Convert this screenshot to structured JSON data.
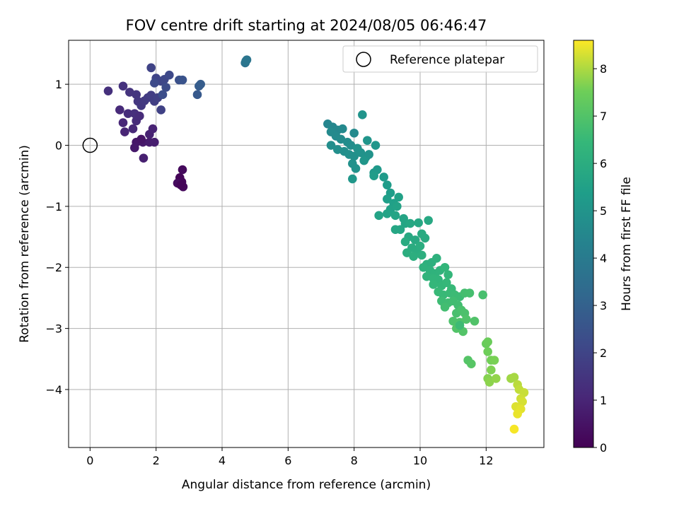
{
  "chart_data": {
    "type": "scatter",
    "title": "FOV centre drift starting at 2024/08/05 06:46:47",
    "xlabel": "Angular distance from reference (arcmin)",
    "ylabel": "Rotation from reference (arcmin)",
    "xlim": [
      -0.65,
      13.75
    ],
    "ylim": [
      -4.95,
      1.72
    ],
    "xticks": [
      0,
      2,
      4,
      6,
      8,
      10,
      12
    ],
    "yticks": [
      -4,
      -3,
      -2,
      -1,
      0,
      1
    ],
    "xtick_labels": [
      "0",
      "2",
      "4",
      "6",
      "8",
      "10",
      "12"
    ],
    "ytick_labels": [
      "−4",
      "−3",
      "−2",
      "−1",
      "0",
      "1"
    ],
    "grid": true,
    "colormap": "viridis",
    "colorbar": {
      "label": "Hours from first FF file",
      "range": [
        0,
        8.6
      ],
      "ticks": [
        0,
        1,
        2,
        3,
        4,
        5,
        6,
        7,
        8
      ],
      "tick_labels": [
        "0",
        "1",
        "2",
        "3",
        "4",
        "5",
        "6",
        "7",
        "8"
      ]
    },
    "legend": {
      "label": "Reference platepar",
      "placement": "top-right"
    },
    "reference_point": {
      "x": 0,
      "y": 0
    },
    "points": [
      {
        "x": 2.72,
        "y": -0.53,
        "c": 0.1
      },
      {
        "x": 2.78,
        "y": -0.6,
        "c": 0.15
      },
      {
        "x": 2.82,
        "y": -0.68,
        "c": 0.2
      },
      {
        "x": 2.8,
        "y": -0.4,
        "c": 0.25
      },
      {
        "x": 2.65,
        "y": -0.62,
        "c": 0.3
      },
      {
        "x": 2.75,
        "y": -0.65,
        "c": 0.12
      },
      {
        "x": 1.4,
        "y": 0.05,
        "c": 0.6
      },
      {
        "x": 1.35,
        "y": -0.04,
        "c": 0.65
      },
      {
        "x": 1.6,
        "y": 0.05,
        "c": 0.7
      },
      {
        "x": 1.8,
        "y": 0.05,
        "c": 0.75
      },
      {
        "x": 1.95,
        "y": 0.05,
        "c": 0.8
      },
      {
        "x": 1.62,
        "y": -0.21,
        "c": 0.85
      },
      {
        "x": 1.8,
        "y": 0.18,
        "c": 0.9
      },
      {
        "x": 1.9,
        "y": 0.27,
        "c": 0.95
      },
      {
        "x": 1.55,
        "y": 0.1,
        "c": 0.55
      },
      {
        "x": 1.05,
        "y": 0.22,
        "c": 1.0
      },
      {
        "x": 1.0,
        "y": 0.37,
        "c": 1.05
      },
      {
        "x": 1.3,
        "y": 0.27,
        "c": 1.1
      },
      {
        "x": 0.9,
        "y": 0.58,
        "c": 1.15
      },
      {
        "x": 1.4,
        "y": 0.4,
        "c": 1.2
      },
      {
        "x": 1.15,
        "y": 0.52,
        "c": 1.25
      },
      {
        "x": 1.35,
        "y": 0.52,
        "c": 1.3
      },
      {
        "x": 0.55,
        "y": 0.89,
        "c": 1.35
      },
      {
        "x": 1.0,
        "y": 0.97,
        "c": 1.4
      },
      {
        "x": 1.2,
        "y": 0.87,
        "c": 1.45
      },
      {
        "x": 1.4,
        "y": 0.83,
        "c": 1.5
      },
      {
        "x": 1.45,
        "y": 0.72,
        "c": 1.55
      },
      {
        "x": 1.55,
        "y": 0.65,
        "c": 1.6
      },
      {
        "x": 1.65,
        "y": 0.73,
        "c": 1.65
      },
      {
        "x": 1.75,
        "y": 0.78,
        "c": 1.7
      },
      {
        "x": 1.85,
        "y": 0.82,
        "c": 1.75
      },
      {
        "x": 1.95,
        "y": 0.72,
        "c": 1.8
      },
      {
        "x": 2.05,
        "y": 0.78,
        "c": 1.85
      },
      {
        "x": 2.15,
        "y": 0.58,
        "c": 1.9
      },
      {
        "x": 1.85,
        "y": 1.27,
        "c": 1.95
      },
      {
        "x": 2.0,
        "y": 1.1,
        "c": 2.0
      },
      {
        "x": 2.15,
        "y": 1.05,
        "c": 2.05
      },
      {
        "x": 2.25,
        "y": 1.08,
        "c": 2.1
      },
      {
        "x": 2.4,
        "y": 1.15,
        "c": 2.15
      },
      {
        "x": 1.95,
        "y": 1.02,
        "c": 2.2
      },
      {
        "x": 2.3,
        "y": 0.95,
        "c": 2.25
      },
      {
        "x": 2.2,
        "y": 0.83,
        "c": 2.3
      },
      {
        "x": 2.7,
        "y": 1.07,
        "c": 2.4
      },
      {
        "x": 2.8,
        "y": 1.07,
        "c": 2.5
      },
      {
        "x": 3.25,
        "y": 0.83,
        "c": 2.7
      },
      {
        "x": 3.3,
        "y": 0.97,
        "c": 2.8
      },
      {
        "x": 3.35,
        "y": 1.0,
        "c": 2.85
      },
      {
        "x": 1.5,
        "y": 0.48,
        "c": 1.22
      },
      {
        "x": 4.7,
        "y": 1.35,
        "c": 3.7
      },
      {
        "x": 4.75,
        "y": 1.4,
        "c": 3.75
      },
      {
        "x": 4.72,
        "y": 1.38,
        "c": 3.8
      },
      {
        "x": 7.2,
        "y": 0.35,
        "c": 4.4
      },
      {
        "x": 7.35,
        "y": 0.3,
        "c": 4.45
      },
      {
        "x": 7.5,
        "y": 0.25,
        "c": 4.5
      },
      {
        "x": 7.65,
        "y": 0.27,
        "c": 4.55
      },
      {
        "x": 7.3,
        "y": 0.22,
        "c": 4.6
      },
      {
        "x": 7.45,
        "y": 0.15,
        "c": 4.62
      },
      {
        "x": 7.6,
        "y": 0.1,
        "c": 4.65
      },
      {
        "x": 7.8,
        "y": 0.05,
        "c": 4.7
      },
      {
        "x": 7.9,
        "y": 0.0,
        "c": 4.72
      },
      {
        "x": 7.3,
        "y": 0.0,
        "c": 4.75
      },
      {
        "x": 7.5,
        "y": -0.07,
        "c": 4.78
      },
      {
        "x": 7.7,
        "y": -0.1,
        "c": 4.8
      },
      {
        "x": 7.85,
        "y": -0.15,
        "c": 4.82
      },
      {
        "x": 8.0,
        "y": -0.18,
        "c": 4.85
      },
      {
        "x": 7.95,
        "y": -0.3,
        "c": 4.88
      },
      {
        "x": 8.05,
        "y": -0.38,
        "c": 4.9
      },
      {
        "x": 8.2,
        "y": -0.12,
        "c": 4.92
      },
      {
        "x": 8.35,
        "y": -0.2,
        "c": 4.95
      },
      {
        "x": 8.45,
        "y": -0.15,
        "c": 4.97
      },
      {
        "x": 8.25,
        "y": 0.5,
        "c": 5.0
      },
      {
        "x": 8.4,
        "y": 0.08,
        "c": 5.02
      },
      {
        "x": 8.0,
        "y": 0.2,
        "c": 4.6
      },
      {
        "x": 8.65,
        "y": 0.0,
        "c": 5.05
      },
      {
        "x": 8.1,
        "y": -0.05,
        "c": 4.9
      },
      {
        "x": 8.3,
        "y": -0.25,
        "c": 5.08
      },
      {
        "x": 7.95,
        "y": -0.55,
        "c": 5.1
      },
      {
        "x": 8.6,
        "y": -0.45,
        "c": 5.15
      },
      {
        "x": 8.7,
        "y": -0.4,
        "c": 5.2
      },
      {
        "x": 8.9,
        "y": -0.52,
        "c": 5.25
      },
      {
        "x": 8.6,
        "y": -0.5,
        "c": 5.28
      },
      {
        "x": 9.0,
        "y": -0.65,
        "c": 5.3
      },
      {
        "x": 9.1,
        "y": -0.78,
        "c": 5.35
      },
      {
        "x": 9.0,
        "y": -0.88,
        "c": 5.4
      },
      {
        "x": 9.2,
        "y": -0.95,
        "c": 5.45
      },
      {
        "x": 9.35,
        "y": -0.85,
        "c": 5.5
      },
      {
        "x": 9.1,
        "y": -1.05,
        "c": 5.52
      },
      {
        "x": 9.3,
        "y": -1.0,
        "c": 5.55
      },
      {
        "x": 9.0,
        "y": -1.12,
        "c": 5.58
      },
      {
        "x": 8.75,
        "y": -1.15,
        "c": 5.6
      },
      {
        "x": 9.25,
        "y": -1.15,
        "c": 5.62
      },
      {
        "x": 9.5,
        "y": -1.2,
        "c": 5.65
      },
      {
        "x": 9.55,
        "y": -1.28,
        "c": 5.68
      },
      {
        "x": 9.25,
        "y": -1.38,
        "c": 5.7
      },
      {
        "x": 9.4,
        "y": -1.38,
        "c": 5.72
      },
      {
        "x": 9.7,
        "y": -1.28,
        "c": 5.75
      },
      {
        "x": 9.95,
        "y": -1.27,
        "c": 5.78
      },
      {
        "x": 10.25,
        "y": -1.23,
        "c": 5.8
      },
      {
        "x": 9.65,
        "y": -1.5,
        "c": 5.82
      },
      {
        "x": 9.85,
        "y": -1.55,
        "c": 5.85
      },
      {
        "x": 10.05,
        "y": -1.45,
        "c": 5.88
      },
      {
        "x": 10.15,
        "y": -1.52,
        "c": 5.9
      },
      {
        "x": 9.55,
        "y": -1.58,
        "c": 5.92
      },
      {
        "x": 9.75,
        "y": -1.68,
        "c": 5.95
      },
      {
        "x": 9.9,
        "y": -1.72,
        "c": 5.98
      },
      {
        "x": 10.0,
        "y": -1.65,
        "c": 6.0
      },
      {
        "x": 9.6,
        "y": -1.76,
        "c": 6.02
      },
      {
        "x": 9.8,
        "y": -1.82,
        "c": 6.05
      },
      {
        "x": 10.05,
        "y": -1.8,
        "c": 6.08
      },
      {
        "x": 10.2,
        "y": -1.95,
        "c": 6.1
      },
      {
        "x": 10.35,
        "y": -1.92,
        "c": 6.12
      },
      {
        "x": 10.5,
        "y": -1.85,
        "c": 6.15
      },
      {
        "x": 10.1,
        "y": -2.0,
        "c": 6.18
      },
      {
        "x": 10.3,
        "y": -2.05,
        "c": 6.2
      },
      {
        "x": 10.45,
        "y": -2.1,
        "c": 6.22
      },
      {
        "x": 10.6,
        "y": -2.05,
        "c": 6.25
      },
      {
        "x": 10.2,
        "y": -2.15,
        "c": 6.28
      },
      {
        "x": 10.4,
        "y": -2.18,
        "c": 6.3
      },
      {
        "x": 10.55,
        "y": -2.2,
        "c": 6.32
      },
      {
        "x": 10.75,
        "y": -2.0,
        "c": 6.35
      },
      {
        "x": 10.85,
        "y": -2.12,
        "c": 6.38
      },
      {
        "x": 10.4,
        "y": -2.28,
        "c": 6.4
      },
      {
        "x": 10.65,
        "y": -2.3,
        "c": 6.42
      },
      {
        "x": 10.8,
        "y": -2.25,
        "c": 6.45
      },
      {
        "x": 10.95,
        "y": -2.35,
        "c": 6.48
      },
      {
        "x": 10.55,
        "y": -2.4,
        "c": 6.5
      },
      {
        "x": 10.7,
        "y": -2.45,
        "c": 6.52
      },
      {
        "x": 10.9,
        "y": -2.42,
        "c": 6.55
      },
      {
        "x": 11.05,
        "y": -2.45,
        "c": 6.58
      },
      {
        "x": 11.2,
        "y": -2.48,
        "c": 6.6
      },
      {
        "x": 10.65,
        "y": -2.55,
        "c": 6.62
      },
      {
        "x": 10.85,
        "y": -2.58,
        "c": 6.65
      },
      {
        "x": 11.0,
        "y": -2.55,
        "c": 6.68
      },
      {
        "x": 11.15,
        "y": -2.62,
        "c": 6.7
      },
      {
        "x": 10.75,
        "y": -2.65,
        "c": 6.72
      },
      {
        "x": 11.35,
        "y": -2.42,
        "c": 6.75
      },
      {
        "x": 11.5,
        "y": -2.42,
        "c": 6.78
      },
      {
        "x": 11.9,
        "y": -2.45,
        "c": 6.8
      },
      {
        "x": 11.1,
        "y": -2.75,
        "c": 6.82
      },
      {
        "x": 11.25,
        "y": -2.7,
        "c": 6.85
      },
      {
        "x": 11.35,
        "y": -2.75,
        "c": 6.88
      },
      {
        "x": 11.0,
        "y": -2.88,
        "c": 6.9
      },
      {
        "x": 11.2,
        "y": -2.9,
        "c": 6.92
      },
      {
        "x": 11.4,
        "y": -2.85,
        "c": 6.95
      },
      {
        "x": 11.65,
        "y": -2.88,
        "c": 6.98
      },
      {
        "x": 11.1,
        "y": -3.0,
        "c": 7.0
      },
      {
        "x": 11.3,
        "y": -3.05,
        "c": 7.02
      },
      {
        "x": 11.2,
        "y": -2.95,
        "c": 6.6
      },
      {
        "x": 11.45,
        "y": -3.52,
        "c": 7.05
      },
      {
        "x": 11.55,
        "y": -3.58,
        "c": 7.1
      },
      {
        "x": 12.0,
        "y": -3.25,
        "c": 7.4
      },
      {
        "x": 12.05,
        "y": -3.22,
        "c": 7.45
      },
      {
        "x": 12.05,
        "y": -3.38,
        "c": 7.5
      },
      {
        "x": 12.15,
        "y": -3.52,
        "c": 7.55
      },
      {
        "x": 12.25,
        "y": -3.52,
        "c": 7.6
      },
      {
        "x": 12.15,
        "y": -3.68,
        "c": 7.65
      },
      {
        "x": 12.05,
        "y": -3.82,
        "c": 7.7
      },
      {
        "x": 12.1,
        "y": -3.88,
        "c": 7.75
      },
      {
        "x": 12.3,
        "y": -3.82,
        "c": 7.8
      },
      {
        "x": 12.75,
        "y": -3.82,
        "c": 7.9
      },
      {
        "x": 12.85,
        "y": -3.8,
        "c": 7.95
      },
      {
        "x": 12.95,
        "y": -3.92,
        "c": 8.1
      },
      {
        "x": 13.0,
        "y": -4.0,
        "c": 8.15
      },
      {
        "x": 13.15,
        "y": -4.05,
        "c": 8.2
      },
      {
        "x": 13.05,
        "y": -4.15,
        "c": 8.25
      },
      {
        "x": 13.1,
        "y": -4.2,
        "c": 8.3
      },
      {
        "x": 12.9,
        "y": -4.28,
        "c": 8.35
      },
      {
        "x": 13.05,
        "y": -4.32,
        "c": 8.4
      },
      {
        "x": 12.95,
        "y": -4.4,
        "c": 8.45
      },
      {
        "x": 12.85,
        "y": -4.65,
        "c": 8.55
      }
    ]
  }
}
